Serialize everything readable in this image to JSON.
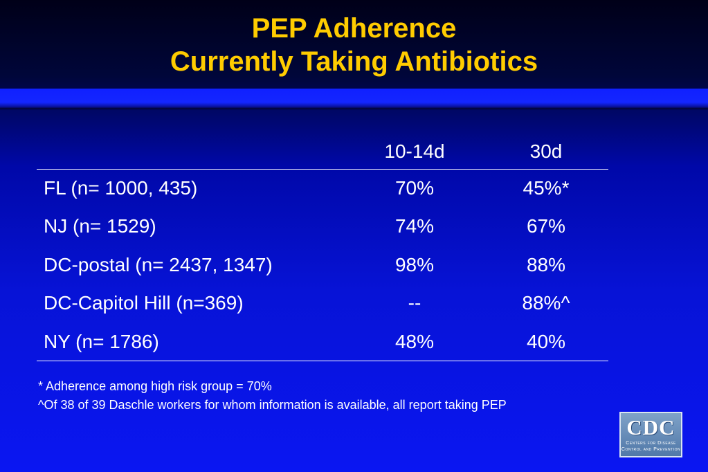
{
  "slide": {
    "title_line1": "PEP Adherence",
    "title_line2": "Currently Taking Antibiotics"
  },
  "table": {
    "headers": [
      "",
      "10-14d",
      "30d"
    ],
    "rows": [
      {
        "label": "FL (n= 1000, 435)",
        "d10_14": "70%",
        "d30": "45%*"
      },
      {
        "label": "NJ (n= 1529)",
        "d10_14": "74%",
        "d30": "67%"
      },
      {
        "label": "DC-postal (n= 2437, 1347)",
        "d10_14": "98%",
        "d30": "88%"
      },
      {
        "label": "DC-Capitol Hill (n=369)",
        "d10_14": "--",
        "d30": "88%^"
      },
      {
        "label": "NY (n= 1786)",
        "d10_14": "48%",
        "d30": "40%"
      }
    ]
  },
  "footnotes": [
    "* Adherence among high risk group = 70%",
    "^Of 38 of 39 Daschle workers for whom information is available, all report taking PEP"
  ],
  "logo": {
    "text": "CDC",
    "sub_line1": "Centers for Disease",
    "sub_line2": "Control and Prevention"
  },
  "colors": {
    "title": "#ffcc00",
    "background": "#0a16f2",
    "text": "#ffffff"
  }
}
